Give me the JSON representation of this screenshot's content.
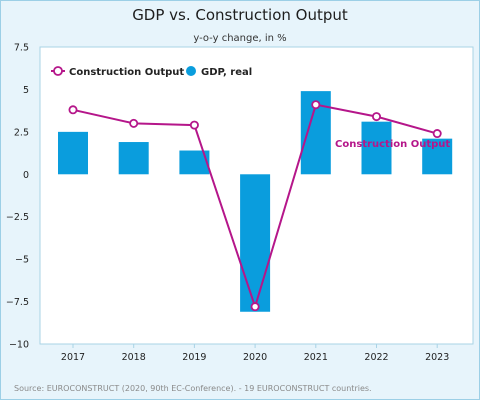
{
  "chart_data": {
    "type": "bar",
    "title": "GDP vs. Construction Output",
    "subtitle": "y-o-y change, in %",
    "categories": [
      "2017",
      "2018",
      "2019",
      "2020",
      "2021",
      "2022",
      "2023"
    ],
    "series": [
      {
        "name": "GDP, real",
        "kind": "bar",
        "color": "#0a9ddd",
        "values": [
          2.5,
          1.9,
          1.4,
          -8.1,
          4.9,
          3.1,
          2.1
        ]
      },
      {
        "name": "Construction Output",
        "kind": "line",
        "color": "#b5168a",
        "values": [
          3.8,
          3.0,
          2.9,
          -7.8,
          4.1,
          3.4,
          2.4
        ]
      }
    ],
    "ylim": [
      -10,
      7.5
    ],
    "yticks": [
      "7.5",
      "5",
      "2.5",
      "0",
      "−2.5",
      "−5",
      "−7.5",
      "−10"
    ],
    "ytick_values": [
      7.5,
      5,
      2.5,
      0,
      -2.5,
      -5,
      -7.5,
      -10
    ],
    "legend": {
      "placement": "top-left",
      "line_label": "Construction Output",
      "bar_label": "GDP, real"
    },
    "annotation": "Construction Output",
    "source": "Source: EUROCONSTRUCT (2020, 90th EC-Conference). - 19 EUROCONSTRUCT countries.",
    "grid": false
  }
}
